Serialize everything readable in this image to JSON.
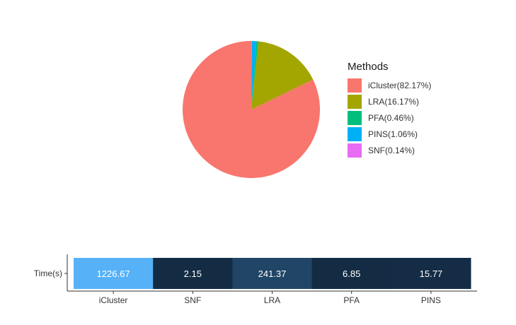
{
  "chart_data": [
    {
      "type": "pie",
      "legend_title": "Methods",
      "legend_position": "right",
      "slices": [
        {
          "name": "iCluster(82.17%)",
          "value": 82.17,
          "color": "#F8766D"
        },
        {
          "name": "LRA(16.17%)",
          "value": 16.17,
          "color": "#A3A500"
        },
        {
          "name": "PFA(0.46%)",
          "value": 0.46,
          "color": "#00BF7D"
        },
        {
          "name": "PINS(1.06%)",
          "value": 1.06,
          "color": "#00B0F6"
        },
        {
          "name": "SNF(0.14%)",
          "value": 0.14,
          "color": "#E76BF3"
        }
      ]
    },
    {
      "type": "heatmap",
      "ylabel": "Time(s)",
      "categories": [
        "iCluster",
        "SNF",
        "LRA",
        "PFA",
        "PINS"
      ],
      "values": [
        1226.67,
        2.15,
        241.37,
        6.85,
        15.77
      ],
      "value_labels": [
        "1226.67",
        "2.15",
        "241.37",
        "6.85",
        "15.77"
      ],
      "color_low": "#132B43",
      "color_high": "#56B1F7"
    }
  ]
}
